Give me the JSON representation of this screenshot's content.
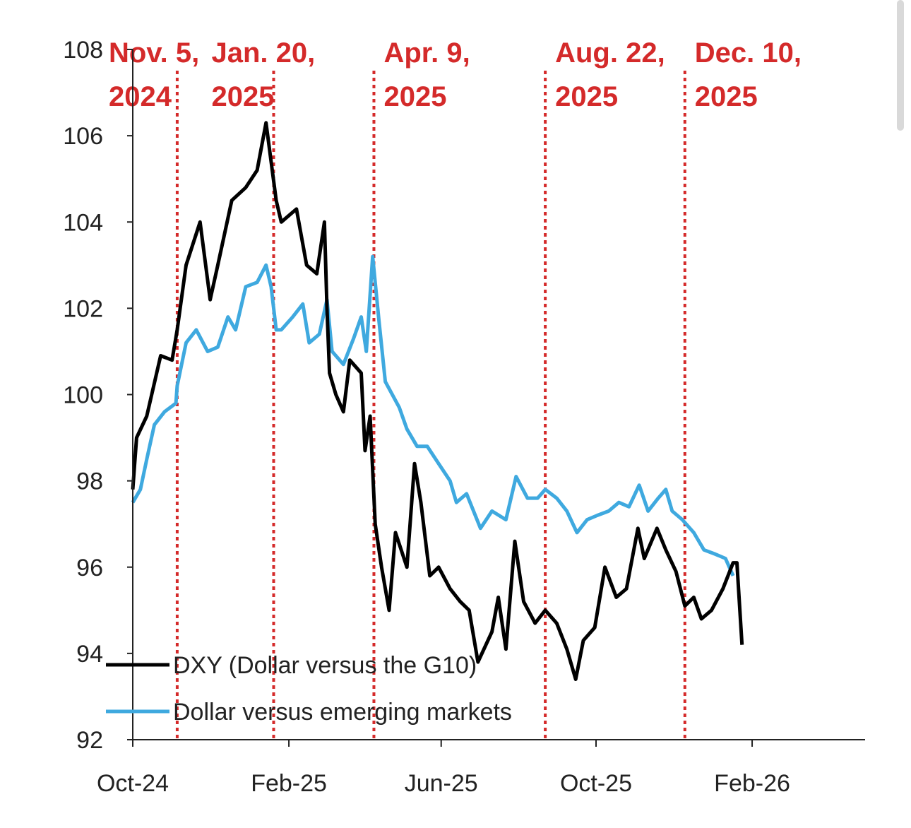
{
  "chart_data": {
    "type": "line",
    "title": "",
    "xlabel": "",
    "ylabel": "",
    "ylim": [
      92,
      108
    ],
    "yticks": [
      "92",
      "94",
      "96",
      "98",
      "100",
      "102",
      "104",
      "106",
      "108"
    ],
    "xlim": [
      "2024-10-01",
      "2026-05-01"
    ],
    "xticks": [
      {
        "date": "2024-10-01",
        "label": "Oct-24"
      },
      {
        "date": "2025-02-01",
        "label": "Feb-25"
      },
      {
        "date": "2025-06-01",
        "label": "Jun-25"
      },
      {
        "date": "2025-10-01",
        "label": "Oct-25"
      },
      {
        "date": "2026-02-01",
        "label": "Feb-26"
      }
    ],
    "grid": false,
    "legend_placement": "bottom-left",
    "events": [
      {
        "date": "2024-11-05",
        "line1": "Nov. 5,",
        "line2": "2024"
      },
      {
        "date": "2025-01-20",
        "line1": "Jan. 20,",
        "line2": "2025"
      },
      {
        "date": "2025-04-09",
        "line1": "Apr. 9,",
        "line2": "2025"
      },
      {
        "date": "2025-08-22",
        "line1": "Aug. 22,",
        "line2": "2025"
      },
      {
        "date": "2025-12-10",
        "line1": "Dec. 10,",
        "line2": "2025"
      }
    ],
    "series": [
      {
        "name": "DXY (Dollar versus the G10)",
        "color": "#000000",
        "points": [
          [
            "2024-10-01",
            97.8
          ],
          [
            "2024-10-04",
            99.0
          ],
          [
            "2024-10-12",
            99.5
          ],
          [
            "2024-10-23",
            100.9
          ],
          [
            "2024-11-01",
            100.8
          ],
          [
            "2024-11-05",
            101.5
          ],
          [
            "2024-11-12",
            103.0
          ],
          [
            "2024-11-23",
            104.0
          ],
          [
            "2024-12-01",
            102.2
          ],
          [
            "2024-12-07",
            103.0
          ],
          [
            "2024-12-18",
            104.5
          ],
          [
            "2024-12-29",
            104.8
          ],
          [
            "2025-01-07",
            105.2
          ],
          [
            "2025-01-14",
            106.3
          ],
          [
            "2025-01-22",
            104.5
          ],
          [
            "2025-01-26",
            104.0
          ],
          [
            "2025-02-07",
            104.3
          ],
          [
            "2025-02-15",
            103.0
          ],
          [
            "2025-02-23",
            102.8
          ],
          [
            "2025-03-01",
            104.0
          ],
          [
            "2025-03-03",
            102.0
          ],
          [
            "2025-03-05",
            100.5
          ],
          [
            "2025-03-10",
            100.0
          ],
          [
            "2025-03-16",
            99.6
          ],
          [
            "2025-03-21",
            100.8
          ],
          [
            "2025-03-30",
            100.5
          ],
          [
            "2025-04-02",
            98.7
          ],
          [
            "2025-04-06",
            99.5
          ],
          [
            "2025-04-10",
            97.0
          ],
          [
            "2025-04-15",
            96.0
          ],
          [
            "2025-04-21",
            95.0
          ],
          [
            "2025-04-26",
            96.8
          ],
          [
            "2025-05-05",
            96.0
          ],
          [
            "2025-05-11",
            98.4
          ],
          [
            "2025-05-16",
            97.5
          ],
          [
            "2025-05-23",
            95.8
          ],
          [
            "2025-05-30",
            96.0
          ],
          [
            "2025-06-08",
            95.5
          ],
          [
            "2025-06-16",
            95.2
          ],
          [
            "2025-06-23",
            95.0
          ],
          [
            "2025-06-30",
            93.8
          ],
          [
            "2025-07-11",
            94.5
          ],
          [
            "2025-07-16",
            95.3
          ],
          [
            "2025-07-22",
            94.1
          ],
          [
            "2025-07-29",
            96.6
          ],
          [
            "2025-08-05",
            95.2
          ],
          [
            "2025-08-14",
            94.7
          ],
          [
            "2025-08-22",
            95.0
          ],
          [
            "2025-08-31",
            94.7
          ],
          [
            "2025-09-08",
            94.1
          ],
          [
            "2025-09-15",
            93.4
          ],
          [
            "2025-09-21",
            94.3
          ],
          [
            "2025-09-30",
            94.6
          ],
          [
            "2025-10-08",
            96.0
          ],
          [
            "2025-10-17",
            95.3
          ],
          [
            "2025-10-25",
            95.5
          ],
          [
            "2025-11-03",
            96.9
          ],
          [
            "2025-11-08",
            96.2
          ],
          [
            "2025-11-18",
            96.9
          ],
          [
            "2025-11-25",
            96.4
          ],
          [
            "2025-12-03",
            95.9
          ],
          [
            "2025-12-10",
            95.1
          ],
          [
            "2025-12-17",
            95.3
          ],
          [
            "2025-12-23",
            94.8
          ],
          [
            "2025-12-31",
            95.0
          ],
          [
            "2026-01-09",
            95.5
          ],
          [
            "2026-01-17",
            96.1
          ],
          [
            "2026-01-20",
            96.1
          ],
          [
            "2026-01-24",
            94.2
          ]
        ]
      },
      {
        "name": "Dollar versus emerging markets",
        "color": "#3fa9df",
        "points": [
          [
            "2024-10-01",
            97.5
          ],
          [
            "2024-10-07",
            97.8
          ],
          [
            "2024-10-12",
            98.5
          ],
          [
            "2024-10-18",
            99.3
          ],
          [
            "2024-10-26",
            99.6
          ],
          [
            "2024-11-04",
            99.8
          ],
          [
            "2024-11-05",
            100.2
          ],
          [
            "2024-11-12",
            101.2
          ],
          [
            "2024-11-20",
            101.5
          ],
          [
            "2024-11-29",
            101.0
          ],
          [
            "2024-12-07",
            101.1
          ],
          [
            "2024-12-15",
            101.8
          ],
          [
            "2024-12-21",
            101.5
          ],
          [
            "2024-12-29",
            102.5
          ],
          [
            "2025-01-07",
            102.6
          ],
          [
            "2025-01-14",
            103.0
          ],
          [
            "2025-01-18",
            102.5
          ],
          [
            "2025-01-22",
            101.5
          ],
          [
            "2025-01-26",
            101.5
          ],
          [
            "2025-02-04",
            101.8
          ],
          [
            "2025-02-12",
            102.1
          ],
          [
            "2025-02-17",
            101.2
          ],
          [
            "2025-02-25",
            101.4
          ],
          [
            "2025-03-03",
            102.2
          ],
          [
            "2025-03-07",
            101.0
          ],
          [
            "2025-03-16",
            100.7
          ],
          [
            "2025-03-24",
            101.3
          ],
          [
            "2025-03-30",
            101.8
          ],
          [
            "2025-04-03",
            101.0
          ],
          [
            "2025-04-08",
            103.2
          ],
          [
            "2025-04-13",
            101.7
          ],
          [
            "2025-04-18",
            100.3
          ],
          [
            "2025-04-29",
            99.7
          ],
          [
            "2025-05-05",
            99.2
          ],
          [
            "2025-05-13",
            98.8
          ],
          [
            "2025-05-21",
            98.8
          ],
          [
            "2025-05-30",
            98.4
          ],
          [
            "2025-06-08",
            98.0
          ],
          [
            "2025-06-13",
            97.5
          ],
          [
            "2025-06-21",
            97.7
          ],
          [
            "2025-07-02",
            96.9
          ],
          [
            "2025-07-11",
            97.3
          ],
          [
            "2025-07-22",
            97.1
          ],
          [
            "2025-07-30",
            98.1
          ],
          [
            "2025-08-08",
            97.6
          ],
          [
            "2025-08-16",
            97.6
          ],
          [
            "2025-08-22",
            97.8
          ],
          [
            "2025-08-31",
            97.6
          ],
          [
            "2025-09-08",
            97.3
          ],
          [
            "2025-09-16",
            96.8
          ],
          [
            "2025-09-24",
            97.1
          ],
          [
            "2025-10-02",
            97.2
          ],
          [
            "2025-10-11",
            97.3
          ],
          [
            "2025-10-19",
            97.5
          ],
          [
            "2025-10-27",
            97.4
          ],
          [
            "2025-11-04",
            97.9
          ],
          [
            "2025-11-11",
            97.3
          ],
          [
            "2025-11-19",
            97.6
          ],
          [
            "2025-11-25",
            97.8
          ],
          [
            "2025-11-30",
            97.3
          ],
          [
            "2025-12-08",
            97.1
          ],
          [
            "2025-12-17",
            96.8
          ],
          [
            "2025-12-25",
            96.4
          ],
          [
            "2026-01-03",
            96.3
          ],
          [
            "2026-01-11",
            96.2
          ],
          [
            "2026-01-17",
            95.8
          ]
        ]
      }
    ]
  }
}
